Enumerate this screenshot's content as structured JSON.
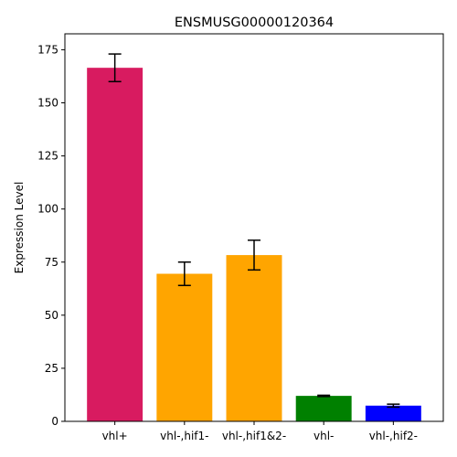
{
  "chart_data": {
    "type": "bar",
    "title": "ENSMUSG00000120364",
    "xlabel": "",
    "ylabel": "Expression Level",
    "categories": [
      "vhl+",
      "vhl-,hif1-",
      "vhl-,hif1&2-",
      "vhl-",
      "vhl-,hif2-"
    ],
    "values": [
      166.5,
      69.5,
      78.3,
      12.0,
      7.4
    ],
    "errors": [
      6.5,
      5.5,
      7.0,
      0.3,
      0.7
    ],
    "colors": [
      "#d81b60",
      "#ffa500",
      "#ffa500",
      "#008000",
      "#0000ff"
    ],
    "ylim": [
      0,
      182.5
    ],
    "yticks": [
      0,
      25,
      50,
      75,
      100,
      125,
      150,
      175
    ],
    "grid": false
  }
}
